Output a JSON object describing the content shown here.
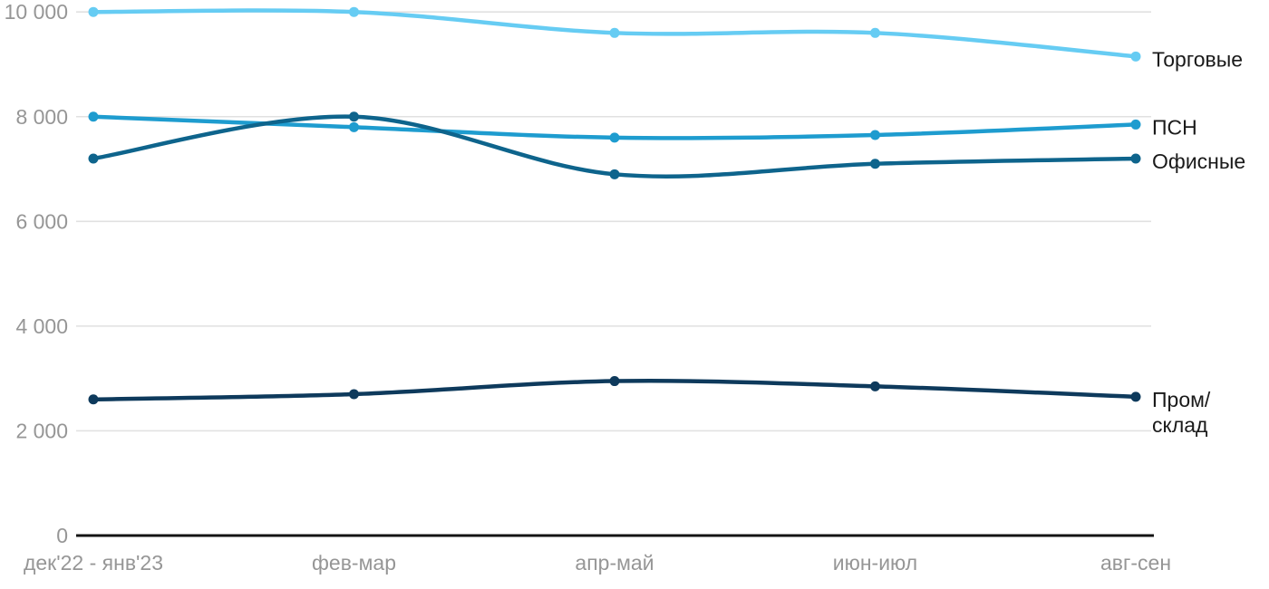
{
  "chart_data": {
    "type": "line",
    "title": "",
    "xlabel": "",
    "ylabel": "",
    "x_labels": [
      "дек'22 - янв'23",
      "фев-мар",
      "апр-май",
      "июн-июл",
      "авг-сен"
    ],
    "ylim": [
      0,
      10000
    ],
    "yticks": [
      0,
      2000,
      4000,
      6000,
      8000,
      10000
    ],
    "ytick_labels": [
      "0",
      "2 000",
      "4 000",
      "6 000",
      "8 000",
      "10 000"
    ],
    "grid": true,
    "legend_position": "right-of-line-ends",
    "series": [
      {
        "id": "torgovye",
        "name": "Торговые",
        "label_lines": [
          "Торговые"
        ],
        "color": "#66CCF3",
        "values": [
          10000,
          10000,
          9600,
          9600,
          9150
        ]
      },
      {
        "id": "psn",
        "name": "ПСН",
        "label_lines": [
          "ПСН"
        ],
        "color": "#1E9CCF",
        "values": [
          8000,
          7800,
          7600,
          7650,
          7850
        ]
      },
      {
        "id": "ofisnye",
        "name": "Офисные",
        "label_lines": [
          "Офисные"
        ],
        "color": "#0E648C",
        "values": [
          7200,
          8000,
          6900,
          7100,
          7200
        ]
      },
      {
        "id": "prom-sklad",
        "name": "Пром/склад",
        "label_lines": [
          "Пром/",
          "склад"
        ],
        "color": "#0E3A5C",
        "values": [
          2600,
          2700,
          2950,
          2850,
          2650
        ]
      }
    ],
    "colors": {
      "grid": "#E1E1E1",
      "axis": "#141414",
      "tick_label": "#969696",
      "series_label": "#1a1a1a",
      "background": "#ffffff"
    }
  }
}
